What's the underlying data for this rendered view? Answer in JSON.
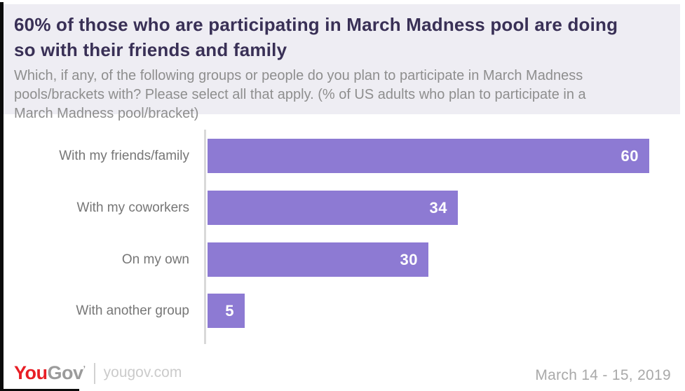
{
  "header": {
    "title": "60% of those who are participating in March Madness pool are doing so with their friends and family",
    "subtitle": "Which, if any, of the following groups or people do you plan to participate in March Madness pools/brackets with? Please select all that apply. (% of US adults who plan to participate in a March Madness pool/bracket)"
  },
  "chart_data": {
    "type": "bar",
    "orientation": "horizontal",
    "title": "60% of those who are participating in March Madness pool are doing so with their friends and family",
    "categories": [
      "With my friends/family",
      "With my coworkers",
      "On my own",
      "With another group"
    ],
    "values": [
      60,
      34,
      30,
      5
    ],
    "value_unit": "% of US adults who plan to participate in a March Madness pool/bracket",
    "xlabel": "",
    "ylabel": "",
    "xlim": [
      0,
      64
    ],
    "grid": false,
    "legend": false,
    "value_label_position": "inside-end",
    "bar_color": "#8d7ad3"
  },
  "footer": {
    "logo_part1": "You",
    "logo_part2": "Gov",
    "logo_tm": "’",
    "site": "yougov.com",
    "date": "March 14 - 15, 2019"
  },
  "colors": {
    "bar": "#8d7ad3",
    "header_bg": "#eeedf3",
    "title": "#393056",
    "subtitle": "#8e8e8e",
    "category_label": "#767676",
    "value_label": "#ffffff",
    "axis_line": "#d9d9d9",
    "logo_red": "#e81e25",
    "logo_gray": "#9b9b9b",
    "date_text": "#a9a9a9",
    "site_text": "#cbcbcb"
  }
}
